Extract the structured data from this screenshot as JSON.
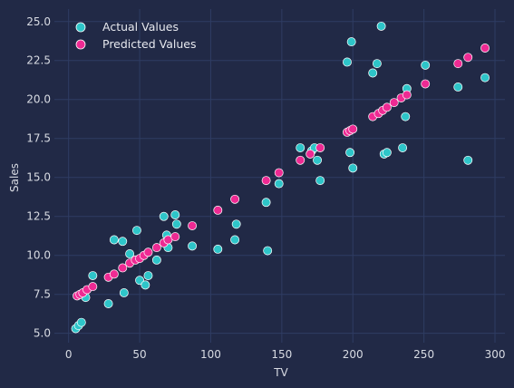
{
  "chart_data": {
    "type": "scatter",
    "title": "",
    "xlabel": "TV",
    "ylabel": "Sales",
    "xlim": [
      -10,
      307
    ],
    "ylim": [
      4.4,
      25.8
    ],
    "xticks": [
      0,
      50,
      100,
      150,
      200,
      250,
      300
    ],
    "yticks": [
      5.0,
      7.5,
      10.0,
      12.5,
      15.0,
      17.5,
      20.0,
      22.5,
      25.0
    ],
    "ytick_labels": [
      "5.0",
      "7.5",
      "10.0",
      "12.5",
      "15.0",
      "17.5",
      "20.0",
      "22.5",
      "25.0"
    ],
    "grid": true,
    "legend_position": "top-left",
    "background": "#212946",
    "series": [
      {
        "name": "Actual Values",
        "color": "#2ec5c9",
        "points": [
          [
            5,
            5.3
          ],
          [
            7,
            5.5
          ],
          [
            9,
            5.7
          ],
          [
            12,
            7.3
          ],
          [
            17,
            8.7
          ],
          [
            28,
            6.9
          ],
          [
            32,
            11.0
          ],
          [
            38,
            10.9
          ],
          [
            39,
            7.6
          ],
          [
            43,
            10.1
          ],
          [
            48,
            11.6
          ],
          [
            50,
            8.4
          ],
          [
            54,
            8.1
          ],
          [
            56,
            8.7
          ],
          [
            62,
            9.7
          ],
          [
            67,
            12.5
          ],
          [
            69,
            11.3
          ],
          [
            70,
            10.5
          ],
          [
            75,
            12.6
          ],
          [
            76,
            12.0
          ],
          [
            87,
            10.6
          ],
          [
            105,
            10.4
          ],
          [
            117,
            11.0
          ],
          [
            118,
            12.0
          ],
          [
            139,
            13.4
          ],
          [
            140,
            10.3
          ],
          [
            148,
            14.6
          ],
          [
            163,
            16.9
          ],
          [
            171,
            16.7
          ],
          [
            173,
            16.9
          ],
          [
            175,
            16.1
          ],
          [
            177,
            14.8
          ],
          [
            196,
            22.4
          ],
          [
            198,
            16.6
          ],
          [
            199,
            23.7
          ],
          [
            200,
            15.6
          ],
          [
            214,
            21.7
          ],
          [
            217,
            22.3
          ],
          [
            220,
            24.7
          ],
          [
            222,
            16.5
          ],
          [
            224,
            16.6
          ],
          [
            235,
            16.9
          ],
          [
            237,
            18.9
          ],
          [
            238,
            20.7
          ],
          [
            251,
            22.2
          ],
          [
            274,
            20.8
          ],
          [
            281,
            16.1
          ],
          [
            293,
            21.4
          ]
        ]
      },
      {
        "name": "Predicted Values",
        "color": "#ee2a93",
        "points": [
          [
            6,
            7.4
          ],
          [
            8,
            7.5
          ],
          [
            10,
            7.6
          ],
          [
            13,
            7.8
          ],
          [
            17,
            8.0
          ],
          [
            28,
            8.6
          ],
          [
            32,
            8.8
          ],
          [
            38,
            9.2
          ],
          [
            43,
            9.5
          ],
          [
            47,
            9.7
          ],
          [
            50,
            9.8
          ],
          [
            53,
            10.0
          ],
          [
            56,
            10.2
          ],
          [
            62,
            10.5
          ],
          [
            67,
            10.8
          ],
          [
            70,
            11.0
          ],
          [
            75,
            11.2
          ],
          [
            87,
            11.9
          ],
          [
            105,
            12.9
          ],
          [
            117,
            13.6
          ],
          [
            139,
            14.8
          ],
          [
            148,
            15.3
          ],
          [
            163,
            16.1
          ],
          [
            170,
            16.5
          ],
          [
            177,
            16.9
          ],
          [
            196,
            17.9
          ],
          [
            198,
            18.0
          ],
          [
            200,
            18.1
          ],
          [
            214,
            18.9
          ],
          [
            218,
            19.1
          ],
          [
            221,
            19.3
          ],
          [
            224,
            19.5
          ],
          [
            229,
            19.8
          ],
          [
            234,
            20.1
          ],
          [
            238,
            20.3
          ],
          [
            251,
            21.0
          ],
          [
            274,
            22.3
          ],
          [
            281,
            22.7
          ],
          [
            293,
            23.3
          ]
        ]
      }
    ]
  }
}
